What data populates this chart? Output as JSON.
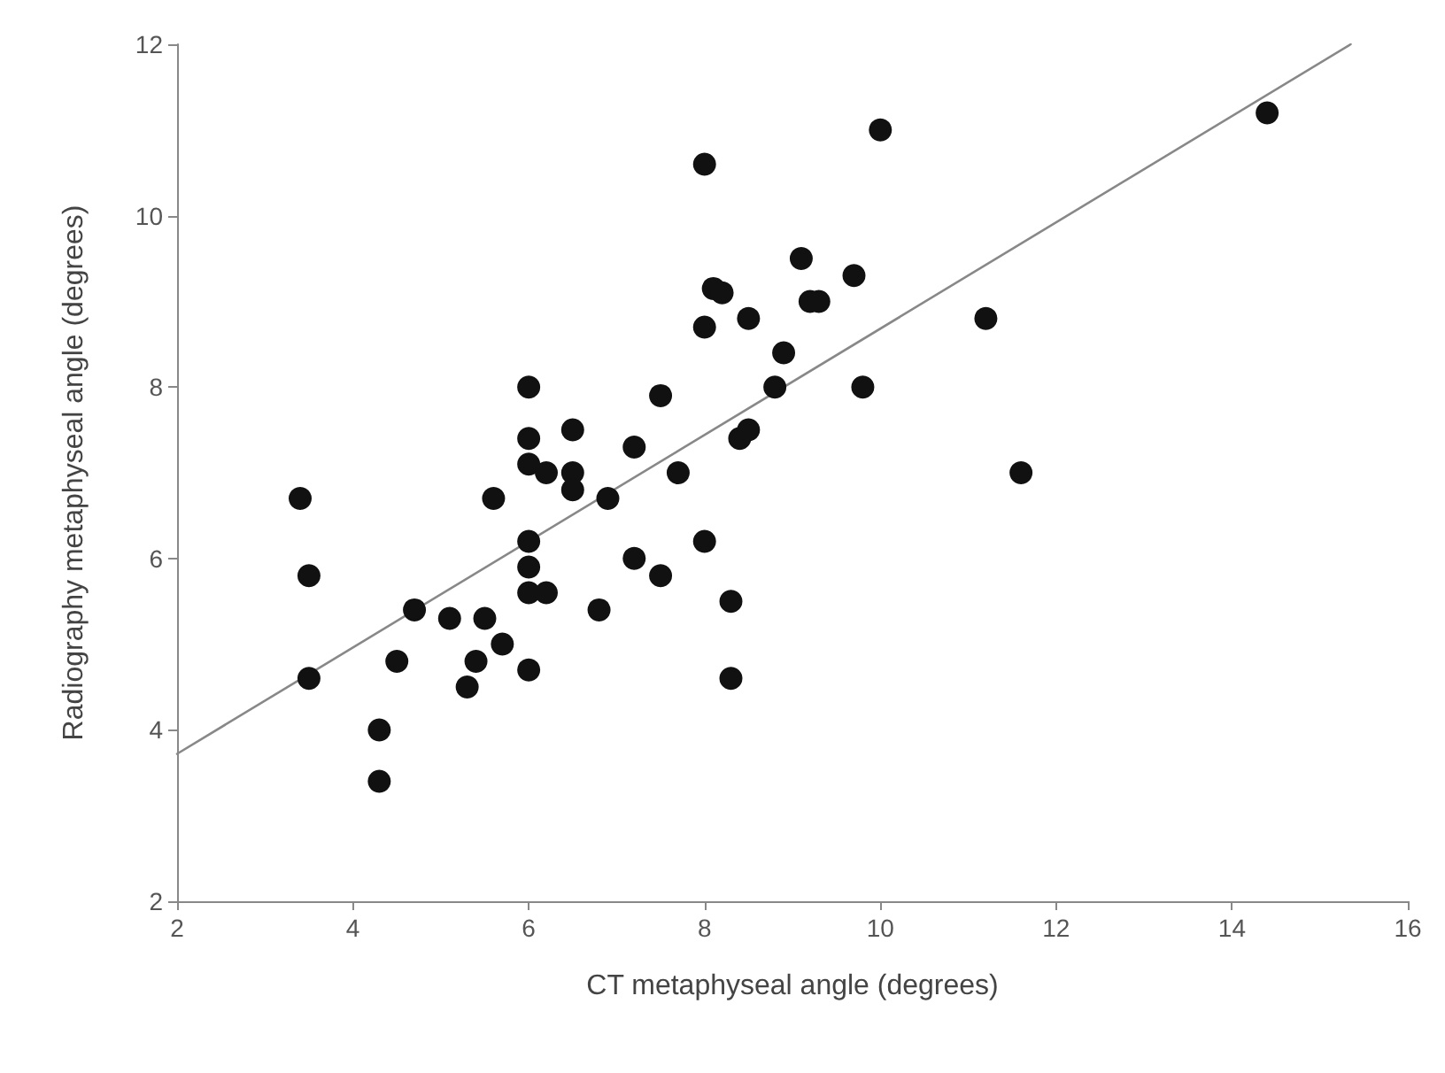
{
  "chart_data": {
    "type": "scatter",
    "xlabel": "CT metaphyseal angle (degrees)",
    "ylabel": "Radiography metaphyseal angle (degrees)",
    "xlim": [
      2,
      16
    ],
    "xticks": [
      2,
      4,
      6,
      8,
      10,
      12,
      14,
      16
    ],
    "ylim": [
      2,
      12
    ],
    "yticks": [
      2,
      4,
      6,
      8,
      10,
      12
    ],
    "grid": false,
    "marker": "circle",
    "series": [
      {
        "color": "#111111",
        "x": [
          3.4,
          3.5,
          3.5,
          4.3,
          4.3,
          4.5,
          4.7,
          5.1,
          5.3,
          5.4,
          5.5,
          5.6,
          5.7,
          6.0,
          6.0,
          6.0,
          6.0,
          6.0,
          6.0,
          6.0,
          6.2,
          6.2,
          6.5,
          6.5,
          6.5,
          6.8,
          6.9,
          7.2,
          7.2,
          7.5,
          7.5,
          7.7,
          8.0,
          8.0,
          8.0,
          8.1,
          8.2,
          8.3,
          8.3,
          8.4,
          8.5,
          8.5,
          8.8,
          8.9,
          9.1,
          9.2,
          9.3,
          9.7,
          9.8,
          10.0,
          11.2,
          11.6,
          14.4
        ],
        "values": [
          6.7,
          5.8,
          4.6,
          4.0,
          3.4,
          4.8,
          5.4,
          5.3,
          4.5,
          4.8,
          5.3,
          6.7,
          5.0,
          8.0,
          7.4,
          7.1,
          6.2,
          5.9,
          5.6,
          4.7,
          7.0,
          5.6,
          7.5,
          7.0,
          6.8,
          5.4,
          6.7,
          7.3,
          6.0,
          7.9,
          5.8,
          7.0,
          10.6,
          8.7,
          6.2,
          9.15,
          9.1,
          5.5,
          4.6,
          7.4,
          7.5,
          8.8,
          8.0,
          8.4,
          9.5,
          9.0,
          9.0,
          9.3,
          8.0,
          11.0,
          8.8,
          7.0,
          11.2
        ]
      },
      {
        "type": "line",
        "color": "#888888",
        "line_style": "solid",
        "marker": "none",
        "x": [
          2,
          15.35
        ],
        "values": [
          3.72,
          12.0
        ]
      }
    ]
  }
}
